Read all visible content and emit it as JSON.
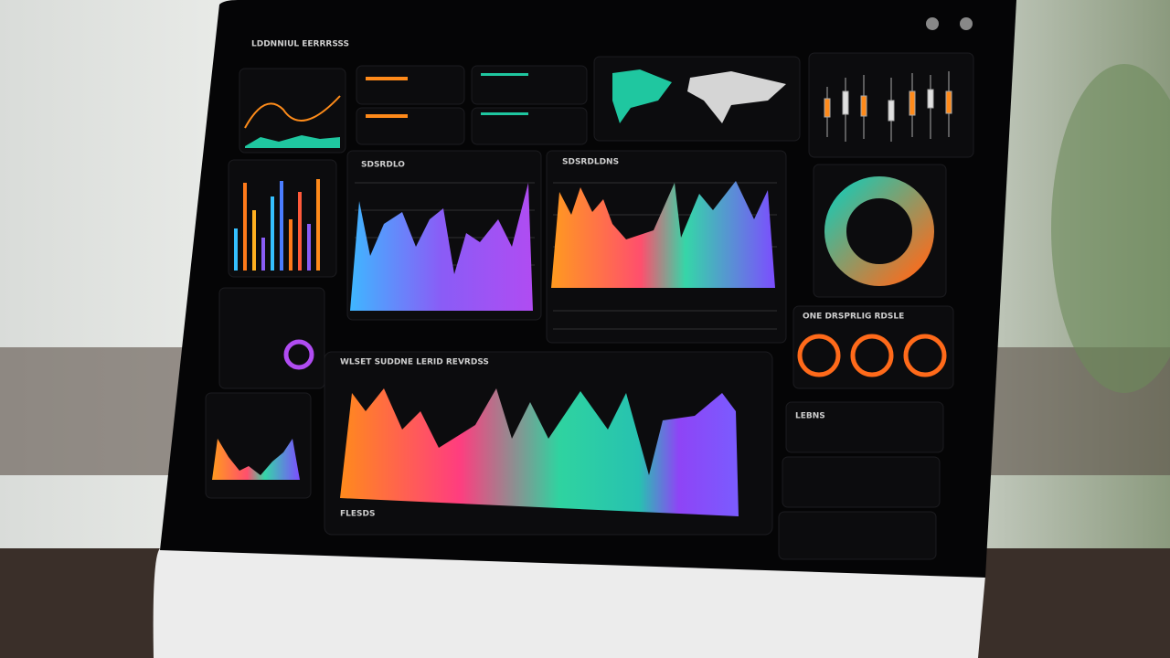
{
  "screen": {
    "header": {
      "title": "LDDNNIUL EERRRSSS"
    },
    "panels": [
      {
        "label": "SDSRDLO"
      },
      {
        "label": "SDSRDLDNS"
      },
      {
        "label": "ONE DRSPRLIG RDSLE"
      },
      {
        "label": "WLSET SUDDNE LERID REVRDSS"
      },
      {
        "label": "FLESDS"
      },
      {
        "label": "LEBNS"
      }
    ]
  }
}
